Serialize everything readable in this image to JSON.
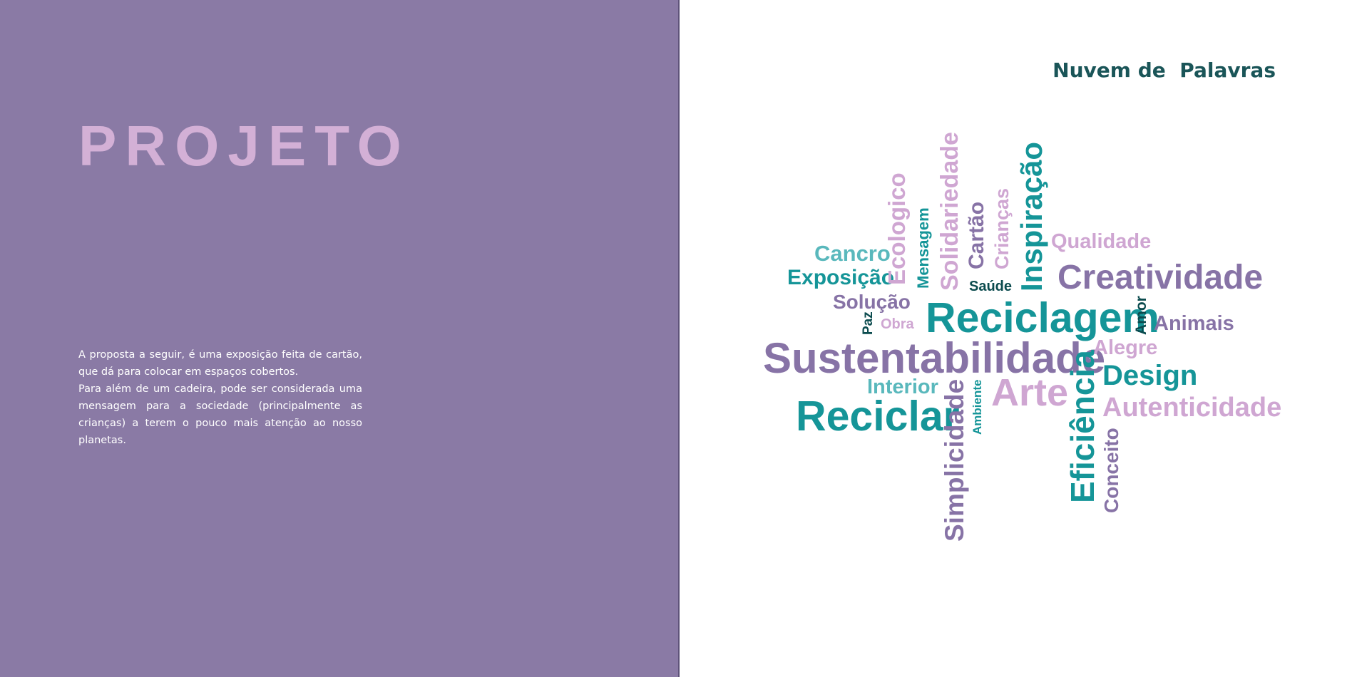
{
  "left": {
    "title": "PROJETO",
    "paragraph_1": "A proposta a seguir, é uma exposição feita de cartão, que dá para colocar em espaços cobertos.",
    "paragraph_2": "Para além de um cadeira, pode ser considerada uma mensagem para a sociedade (principalmente as crianças) a terem o pouco mais atenção ao nosso planetas."
  },
  "right": {
    "title": "Nuvem de  Palavras",
    "words": {
      "cancro": "Cancro",
      "exposicao": "Exposição",
      "solucao": "Solução",
      "paz": "Paz",
      "obra": "Obra",
      "ecologico": "Ecologico",
      "mensagem": "Mensagem",
      "solidariedade": "Solidariedade",
      "cartao": "Cartão",
      "criancas": "Crianças",
      "inspiracao": "Inspiração",
      "qualidade": "Qualidade",
      "creatividade": "Creatividade",
      "saude": "Saúde",
      "reciclagem": "Reciclagem",
      "amor": "Amor",
      "animais": "Animais",
      "sustentabilidade": "Sustentabilidade",
      "alegre": "Alegre",
      "interior": "Interior",
      "arte": "Arte",
      "eficiencia": "Eficiência",
      "design": "Design",
      "autenticidade": "Autenticidade",
      "reciclar": "Reciclar",
      "simplicidade": "Simplicidade",
      "ambiente": "Ambiente",
      "conceito": "Conceito"
    }
  },
  "colors": {
    "left_background": "#8a7aa5",
    "title_pink": "#d3b0d6",
    "teal": "#159598",
    "light_teal": "#59b8bc",
    "purple": "#8773a6",
    "pink": "#cfa6d2",
    "dark_teal": "#0b4b4e"
  }
}
